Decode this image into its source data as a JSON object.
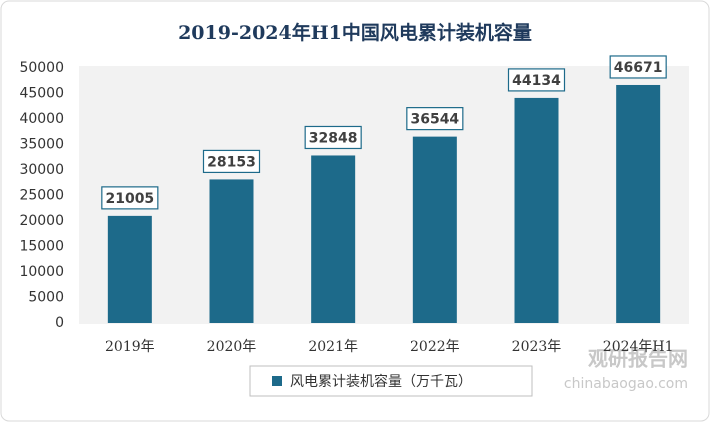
{
  "chart_data": {
    "type": "bar",
    "title": "2019-2024年H1中国风电累计装机容量",
    "categories": [
      "2019年",
      "2020年",
      "2021年",
      "2022年",
      "2023年",
      "2024年H1"
    ],
    "series": [
      {
        "name": "风电累计装机容量（万千瓦）",
        "color": "#1d6a8a",
        "values": [
          21005,
          28153,
          32848,
          36544,
          44134,
          46671
        ]
      }
    ],
    "ylim": [
      0,
      50000
    ],
    "yticks": [
      0,
      5000,
      10000,
      15000,
      20000,
      25000,
      30000,
      35000,
      40000,
      45000,
      50000
    ],
    "grid": false,
    "legend": "bottom",
    "watermark": {
      "name": "观研报告网",
      "url": "chinabaogao.com"
    }
  }
}
